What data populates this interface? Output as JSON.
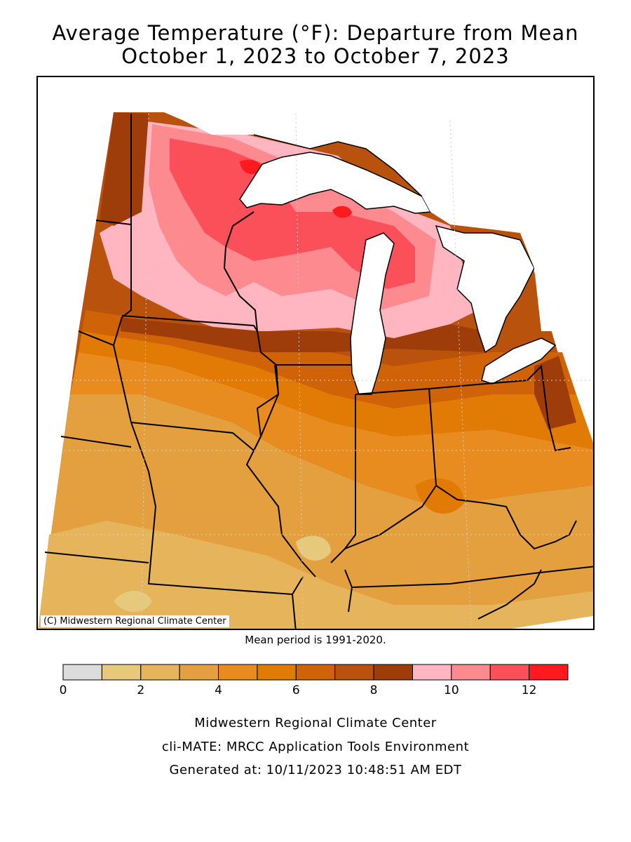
{
  "title": {
    "line1": "Average Temperature (°F): Departure from Mean",
    "line2": "October 1, 2023 to October 7, 2023"
  },
  "map": {
    "copyright": "(C) Midwestern Regional Climate Center",
    "variable": "temperature departure (°F)",
    "period": {
      "start": "October 1, 2023",
      "end": "October 7, 2023"
    },
    "states": [
      "Minnesota",
      "Wisconsin",
      "Michigan",
      "Iowa",
      "Illinois",
      "Indiana",
      "Ohio",
      "Missouri",
      "Kentucky"
    ]
  },
  "mean_period": "Mean period is 1991-2020.",
  "legend": {
    "bins": [
      {
        "from": 0,
        "to": 1,
        "color": "#dcdcdc"
      },
      {
        "from": 1,
        "to": 2,
        "color": "#e6c97a"
      },
      {
        "from": 2,
        "to": 3,
        "color": "#e6b45a"
      },
      {
        "from": 3,
        "to": 4,
        "color": "#e4a03e"
      },
      {
        "from": 4,
        "to": 5,
        "color": "#e88c20"
      },
      {
        "from": 5,
        "to": 6,
        "color": "#e27a06"
      },
      {
        "from": 6,
        "to": 7,
        "color": "#d06208"
      },
      {
        "from": 7,
        "to": 8,
        "color": "#b9520c"
      },
      {
        "from": 8,
        "to": 9,
        "color": "#9e3c0a"
      },
      {
        "from": 9,
        "to": 10,
        "color": "#ffb6c1"
      },
      {
        "from": 10,
        "to": 11,
        "color": "#fc8a8f"
      },
      {
        "from": 11,
        "to": 12,
        "color": "#fb4f5a"
      },
      {
        "from": 12,
        "to": 13,
        "color": "#ff1a1f"
      }
    ],
    "tick_labels": [
      "0",
      "2",
      "4",
      "6",
      "8",
      "10",
      "12"
    ]
  },
  "credits": {
    "line1": "Midwestern Regional Climate Center",
    "line2": "cli-MATE: MRCC Application Tools Environment",
    "line3": "Generated at: 10/11/2023 10:48:51 AM EDT"
  }
}
